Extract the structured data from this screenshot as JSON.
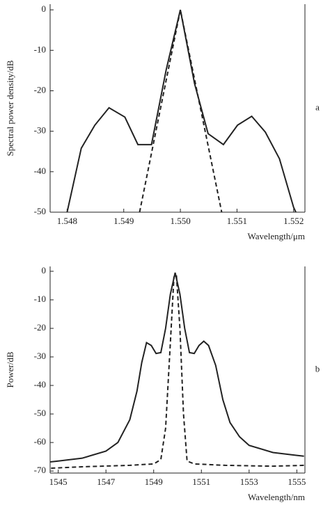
{
  "chart_data": [
    {
      "type": "line",
      "panel_label": "a",
      "ylabel": "Spectral power density/dB",
      "xlabel": "Wavelength/μm",
      "xlim": [
        1.5477,
        1.5522
      ],
      "ylim": [
        -50,
        1.4
      ],
      "xticks": [
        1.548,
        1.549,
        {
          "value": 1.55,
          "label": "1.550"
        },
        1.551,
        1.552
      ],
      "yticks": [
        0,
        -10,
        -20,
        -30,
        -40,
        -50
      ],
      "series": [
        {
          "color": "#222222",
          "style": "solid",
          "x": [
            1.548,
            1.54825,
            1.54849,
            1.54874,
            1.54902,
            1.54925,
            1.54949,
            1.54975,
            1.55,
            1.55025,
            1.55049,
            1.55076,
            1.55101,
            1.55126,
            1.5515,
            1.55175,
            1.552,
            1.55204
          ],
          "values": [
            -50,
            -34.2,
            -28.5,
            -24.2,
            -26.5,
            -33.3,
            -33.3,
            -14.8,
            0,
            -18.2,
            -30.6,
            -33.3,
            -28.5,
            -26.3,
            -30.2,
            -36.8,
            -48.8,
            -50
          ]
        },
        {
          "color": "#222222",
          "style": "dashed",
          "x": [
            1.54928,
            1.55,
            1.55073
          ],
          "values": [
            -50,
            0,
            -50
          ]
        }
      ]
    },
    {
      "type": "line",
      "panel_label": "b",
      "ylabel": "Power/dB",
      "xlabel": "Wavelength/nm",
      "xlim": [
        1544.66,
        1555.34
      ],
      "ylim": [
        -70.7,
        1.7
      ],
      "xticks": [
        1545,
        1547,
        1549,
        1551,
        1553,
        1555
      ],
      "yticks": [
        0,
        -10,
        -20,
        -30,
        -40,
        -50,
        -60,
        -70
      ],
      "series": [
        {
          "color": "#222222",
          "style": "solid",
          "x": [
            1544.66,
            1545,
            1546,
            1547,
            1547.5,
            1548,
            1548.3,
            1548.5,
            1548.7,
            1548.9,
            1549.1,
            1549.3,
            1549.5,
            1549.7,
            1549.9,
            1550.1,
            1550.3,
            1550.5,
            1550.7,
            1550.9,
            1551.1,
            1551.3,
            1551.6,
            1551.9,
            1552.2,
            1552.6,
            1553,
            1554,
            1555,
            1555.3
          ],
          "values": [
            -66.8,
            -66.5,
            -65.5,
            -63,
            -60,
            -52,
            -42,
            -32,
            -25,
            -26,
            -28.8,
            -28.5,
            -20,
            -8,
            -0.5,
            -8,
            -20,
            -28.5,
            -28.8,
            -26,
            -24.5,
            -26,
            -33,
            -45,
            -53,
            -58,
            -61,
            -63.5,
            -64.5,
            -64.8
          ]
        },
        {
          "color": "#222222",
          "style": "dashed",
          "x": [
            1544.7,
            1546,
            1548,
            1549,
            1549.3,
            1549.5,
            1549.7,
            1549.85,
            1549.95,
            1550.1,
            1550.25,
            1550.4,
            1550.7,
            1552,
            1554,
            1555.3
          ],
          "values": [
            -69,
            -68.5,
            -68,
            -67.5,
            -66,
            -55,
            -25,
            -2,
            -1,
            -20,
            -50,
            -66.5,
            -67.5,
            -68,
            -68.3,
            -68
          ]
        }
      ]
    }
  ]
}
